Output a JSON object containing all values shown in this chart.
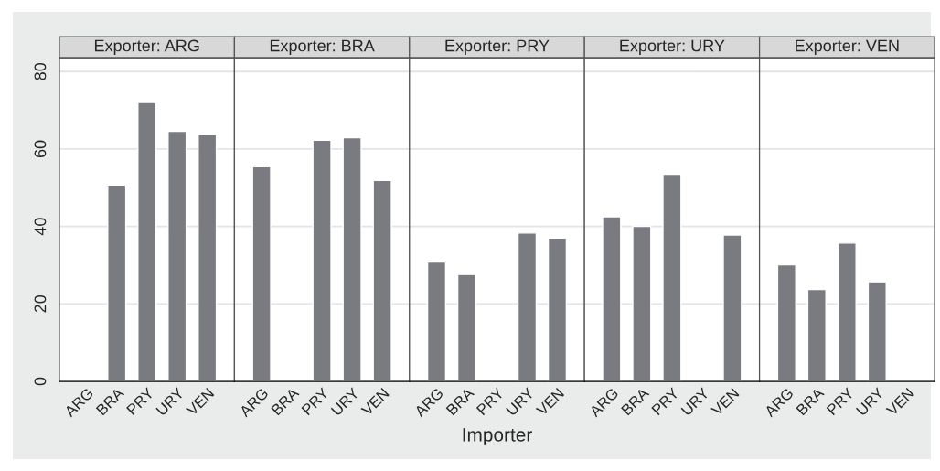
{
  "chart_data": [
    {
      "type": "bar",
      "title": "Exporter: ARG",
      "categories": [
        "ARG",
        "BRA",
        "PRY",
        "URY",
        "VEN"
      ],
      "values": [
        null,
        50.7,
        72.0,
        64.6,
        63.7
      ],
      "color": "#7a7b80",
      "ylim": [
        0,
        83.6
      ],
      "yticks": [
        0,
        20,
        40,
        60,
        80
      ],
      "grid": "y"
    },
    {
      "type": "bar",
      "title": "Exporter: BRA",
      "categories": [
        "ARG",
        "BRA",
        "PRY",
        "URY",
        "VEN"
      ],
      "values": [
        55.4,
        null,
        62.3,
        62.9,
        51.9
      ],
      "color": "#7a7b80",
      "ylim": [
        0,
        83.6
      ],
      "yticks": [
        0,
        20,
        40,
        60,
        80
      ],
      "grid": "y",
      "tick_labels": "x"
    },
    {
      "type": "bar",
      "title": "Exporter: PRY",
      "xlabel": "Importer",
      "categories": [
        "ARG",
        "BRA",
        "PRY",
        "URY",
        "VEN"
      ],
      "values": [
        30.8,
        27.6,
        null,
        38.3,
        37.0
      ],
      "color": "#7a7b80",
      "ylim": [
        0,
        83.6
      ],
      "yticks": [
        0,
        20,
        40,
        60,
        80
      ],
      "grid": "y",
      "tick_labels": "x"
    },
    {
      "type": "bar",
      "title": "Exporter: URY",
      "categories": [
        "ARG",
        "BRA",
        "PRY",
        "URY",
        "VEN"
      ],
      "values": [
        42.5,
        40.0,
        53.5,
        null,
        37.8
      ],
      "color": "#7a7b80",
      "ylim": [
        0,
        83.6
      ],
      "yticks": [
        0,
        20,
        40,
        60,
        80
      ],
      "grid": "y",
      "tick_labels": "x"
    },
    {
      "type": "bar",
      "title": "Exporter: VEN",
      "categories": [
        "ARG",
        "BRA",
        "PRY",
        "URY",
        "VEN"
      ],
      "values": [
        30.1,
        23.7,
        35.7,
        25.7,
        null
      ],
      "color": "#7a7b80",
      "ylim": [
        0,
        83.6
      ],
      "yticks": [
        0,
        20,
        40,
        60,
        80
      ],
      "grid": "y",
      "tick_labels": "x"
    }
  ]
}
